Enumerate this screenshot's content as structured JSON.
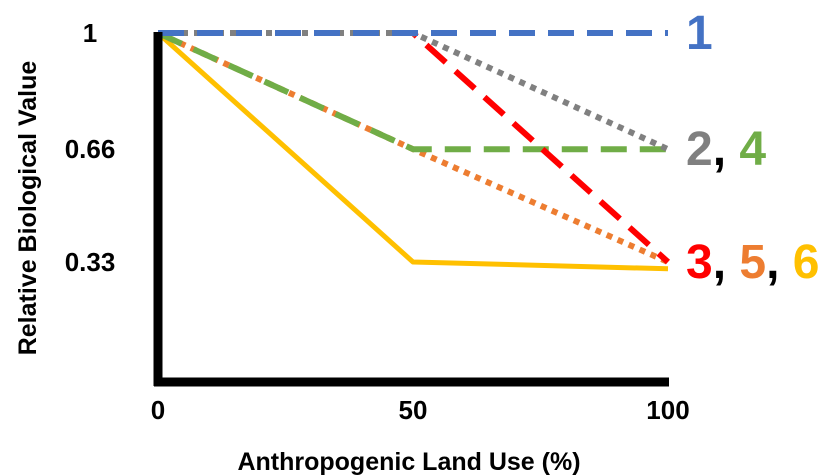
{
  "chart_data": {
    "type": "line",
    "xlabel": "Anthropogenic Land Use (%)",
    "ylabel": "Relative Biological Value",
    "xlim": [
      0,
      100
    ],
    "ylim": [
      0,
      1
    ],
    "x_ticks": [
      {
        "value": 0,
        "label": "0"
      },
      {
        "value": 50,
        "label": "50"
      },
      {
        "value": 100,
        "label": "100"
      }
    ],
    "y_ticks": [
      {
        "value": 0.33,
        "label": "0.33"
      },
      {
        "value": 0.66,
        "label": "0.66"
      },
      {
        "value": 1,
        "label": "1"
      }
    ],
    "grid": false,
    "legend": "inline labels at right end of lines",
    "series": [
      {
        "id": "1",
        "color": "#4472C4",
        "style": "dashed",
        "x": [
          0,
          50,
          100
        ],
        "y": [
          1,
          1,
          1
        ]
      },
      {
        "id": "2",
        "color": "#808080",
        "style": "dotted",
        "x": [
          0,
          50,
          100
        ],
        "y": [
          1,
          1,
          0.66
        ]
      },
      {
        "id": "3",
        "color": "#FF0000",
        "style": "dashed",
        "x": [
          0,
          50,
          100
        ],
        "y": [
          1,
          1,
          0.33
        ]
      },
      {
        "id": "4",
        "color": "#70AD47",
        "style": "dashed",
        "x": [
          0,
          50,
          100
        ],
        "y": [
          1,
          0.66,
          0.66
        ]
      },
      {
        "id": "5",
        "color": "#ED7D31",
        "style": "dotted",
        "x": [
          0,
          50,
          100
        ],
        "y": [
          1,
          0.66,
          0.33
        ]
      },
      {
        "id": "6",
        "color": "#FFC000",
        "style": "solid",
        "x": [
          0,
          50,
          100
        ],
        "y": [
          1,
          0.33,
          0.31
        ]
      }
    ],
    "end_labels": [
      {
        "text": "1",
        "color": "#4472C4",
        "at_y": 1,
        "parts": [
          {
            "text": "1",
            "color": "#4472C4"
          }
        ]
      },
      {
        "text": "2, 4",
        "color": "#808080",
        "at_y": 0.66,
        "parts": [
          {
            "text": "2",
            "color": "#808080"
          },
          {
            "text": ", ",
            "color": "#000000"
          },
          {
            "text": "4",
            "color": "#70AD47"
          }
        ]
      },
      {
        "text": "3, 5, 6",
        "color": "#FF0000",
        "at_y": 0.33,
        "parts": [
          {
            "text": "3",
            "color": "#FF0000"
          },
          {
            "text": ", ",
            "color": "#000000"
          },
          {
            "text": "5",
            "color": "#ED7D31"
          },
          {
            "text": ", ",
            "color": "#000000"
          },
          {
            "text": "6",
            "color": "#FFC000"
          }
        ]
      }
    ]
  }
}
